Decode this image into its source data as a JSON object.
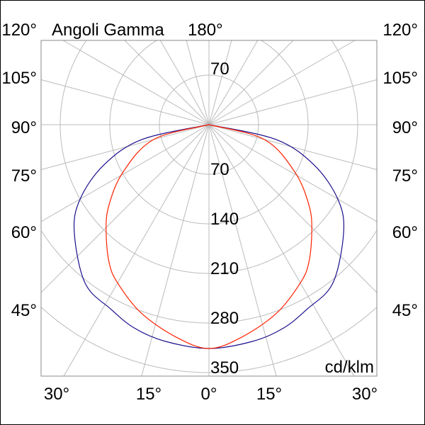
{
  "chart_data": {
    "type": "polar",
    "title": "Angoli Gamma",
    "unit_label": "cd/klm",
    "radial_ticks": [
      70,
      140,
      210,
      280,
      350
    ],
    "radial_max": 350,
    "angle_step_deg": 15,
    "grid": true,
    "angle_labels_left": [
      "120°",
      "105°",
      "90°",
      "75°",
      "60°",
      "45°"
    ],
    "angle_labels_right": [
      "120°",
      "105°",
      "90°",
      "75°",
      "60°",
      "45°"
    ],
    "angle_labels_bottom": [
      "30°",
      "15°",
      "0°",
      "15°",
      "30°"
    ],
    "angle_label_top": "180°",
    "series": [
      {
        "color": "#1a0f8c",
        "angles_deg": [
          0,
          11.5,
          20,
          28,
          38,
          51.5,
          60,
          69,
          77.5,
          90
        ],
        "values": [
          316,
          312,
          306,
          295,
          284,
          243,
          210,
          159,
          97,
          0
        ]
      },
      {
        "color": "#ff2200",
        "angles_deg": [
          0,
          8.5,
          19.6,
          30,
          36,
          44,
          51,
          61,
          75,
          90
        ],
        "values": [
          316,
          304,
          283,
          258,
          240,
          209,
          182,
          139,
          81,
          0
        ]
      }
    ]
  }
}
